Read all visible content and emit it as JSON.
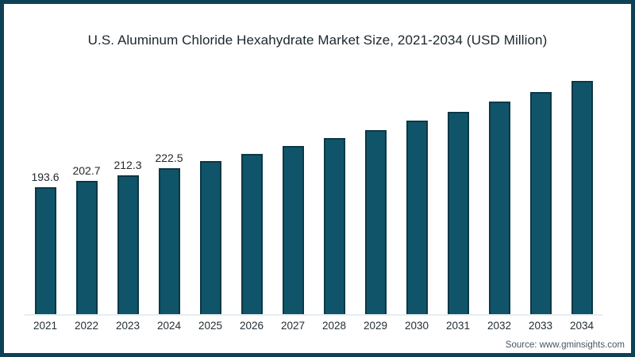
{
  "chart_data": {
    "type": "bar",
    "title": "U.S. Aluminum Chloride Hexahydrate Market Size, 2021-2034 (USD Million)",
    "categories": [
      "2021",
      "2022",
      "2023",
      "2024",
      "2025",
      "2026",
      "2027",
      "2028",
      "2029",
      "2030",
      "2031",
      "2032",
      "2033",
      "2034"
    ],
    "values": [
      193.6,
      202.7,
      212.3,
      222.5,
      233.2,
      244.4,
      256.1,
      268.4,
      281.3,
      294.8,
      308.9,
      323.7,
      339.3,
      355.5
    ],
    "value_labels_visible": [
      "193.6",
      "202.7",
      "212.3",
      "222.5",
      "",
      "",
      "",
      "",
      "",
      "",
      "",
      "",
      "",
      ""
    ],
    "xlabel": "",
    "ylabel": "",
    "ylim": [
      0,
      380
    ],
    "grid": false,
    "legend": false,
    "bar_color": "#10546A",
    "bar_border_color": "#0C3845"
  },
  "source": {
    "text": "Source: www.gminsights.com"
  },
  "colors": {
    "frame_border": "#0E4155",
    "baseline": "#E4EEF3",
    "background": "#FFFFFF",
    "title_text": "#1B262C",
    "axis_text": "#232E35",
    "source_text": "#475663"
  }
}
